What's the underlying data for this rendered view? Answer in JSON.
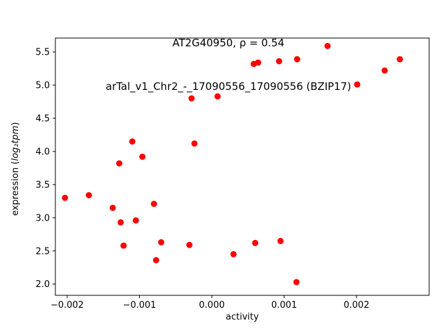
{
  "chart_data": {
    "type": "scatter",
    "title_line1": "AT2G40950, ρ = 0.54",
    "title_line2": "arTal_v1_Chr2_-_17090556_17090556 (BZIP17)",
    "xlabel": "activity",
    "ylabel_prefix": "expression (",
    "ylabel_math": "log₂tpm",
    "ylabel_suffix": ")",
    "xlim": [
      -0.002163,
      0.003005
    ],
    "ylim": [
      1.83,
      5.71
    ],
    "grid": false,
    "legend": "none",
    "marker_color": "#ff0000",
    "axis_color": "#000000",
    "xticks": [
      {
        "value": -0.002,
        "label": "−0.002"
      },
      {
        "value": -0.001,
        "label": "−0.001"
      },
      {
        "value": 0.0,
        "label": "0.000"
      },
      {
        "value": 0.001,
        "label": "0.001"
      },
      {
        "value": 0.002,
        "label": "0.002"
      }
    ],
    "yticks": [
      {
        "value": 2.0,
        "label": "2.0"
      },
      {
        "value": 2.5,
        "label": "2.5"
      },
      {
        "value": 3.0,
        "label": "3.0"
      },
      {
        "value": 3.5,
        "label": "3.5"
      },
      {
        "value": 4.0,
        "label": "4.0"
      },
      {
        "value": 4.5,
        "label": "4.5"
      },
      {
        "value": 5.0,
        "label": "5.0"
      },
      {
        "value": 5.5,
        "label": "5.5"
      }
    ],
    "points": [
      [
        -0.00203,
        3.3
      ],
      [
        -0.0017,
        3.34
      ],
      [
        -0.00137,
        3.15
      ],
      [
        -0.00128,
        3.82
      ],
      [
        -0.00126,
        2.93
      ],
      [
        -0.00122,
        2.58
      ],
      [
        -0.0011,
        4.15
      ],
      [
        -0.00105,
        2.96
      ],
      [
        -0.00096,
        3.92
      ],
      [
        -0.0008,
        3.21
      ],
      [
        -0.00077,
        2.36
      ],
      [
        -0.0007,
        2.63
      ],
      [
        -0.00031,
        2.59
      ],
      [
        -0.00028,
        4.8
      ],
      [
        -0.00024,
        4.12
      ],
      [
        8e-05,
        4.83
      ],
      [
        0.0003,
        2.45
      ],
      [
        0.00058,
        5.32
      ],
      [
        0.0006,
        2.62
      ],
      [
        0.00064,
        5.34
      ],
      [
        0.00093,
        5.36
      ],
      [
        0.00095,
        2.65
      ],
      [
        0.00117,
        2.03
      ],
      [
        0.00118,
        5.39
      ],
      [
        0.0016,
        5.59
      ],
      [
        0.00201,
        5.01
      ],
      [
        0.00239,
        5.22
      ],
      [
        0.0026,
        5.39
      ]
    ]
  }
}
